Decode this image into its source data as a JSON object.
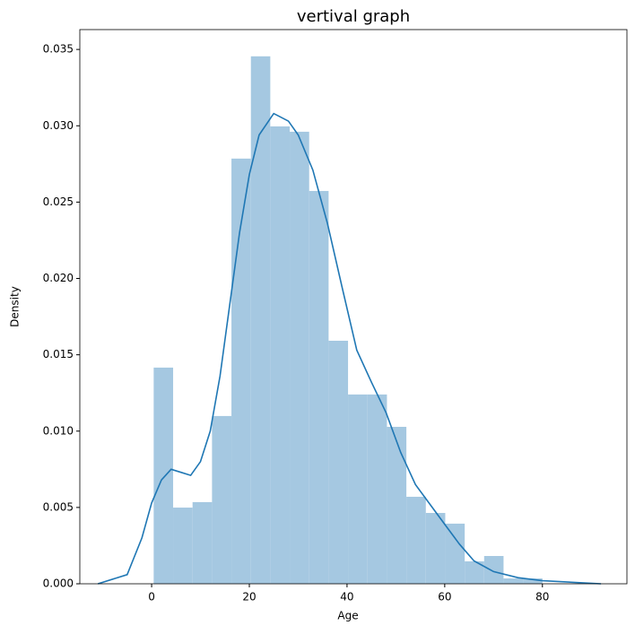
{
  "chart_data": {
    "type": "histogram",
    "title": "vertival graph",
    "x_label": "Age",
    "y_label": "Density",
    "bins": [
      0.42,
      4.4,
      8.38,
      12.36,
      16.34,
      20.32,
      24.29,
      28.27,
      32.25,
      36.23,
      40.21,
      44.19,
      48.17,
      52.15,
      56.13,
      60.11,
      64.09,
      68.07,
      72.04,
      76.02,
      80.0
    ],
    "values": [
      0.01416,
      0.00499,
      0.00535,
      0.01099,
      0.02785,
      0.03455,
      0.02996,
      0.02961,
      0.02573,
      0.01592,
      0.0124,
      0.0124,
      0.01028,
      0.0057,
      0.00464,
      0.00394,
      0.00147,
      0.00182,
      0.00035,
      0.00035
    ],
    "color": "#a5c8e1",
    "kde": {
      "color": "#1f77b4",
      "x": [
        -11,
        -5,
        -2,
        0,
        2,
        4,
        6,
        8,
        10,
        12,
        14,
        16,
        18,
        20,
        22,
        25,
        28,
        30,
        33,
        36,
        39,
        42,
        45,
        48,
        51,
        54,
        57,
        60,
        63,
        66,
        70,
        75,
        80,
        86,
        92
      ],
      "values": [
        0.0,
        0.0006,
        0.003,
        0.0053,
        0.0068,
        0.0075,
        0.0073,
        0.0071,
        0.008,
        0.01,
        0.0136,
        0.0183,
        0.023,
        0.0268,
        0.0294,
        0.0308,
        0.0303,
        0.0294,
        0.0271,
        0.0236,
        0.0194,
        0.0153,
        0.0132,
        0.0112,
        0.0086,
        0.0065,
        0.0052,
        0.0039,
        0.0026,
        0.0015,
        0.0008,
        0.0004,
        0.0002,
        0.0001,
        0.0
      ]
    },
    "xlim": [
      -14.7,
      97.3
    ],
    "ylim": [
      0,
      0.0363
    ],
    "xticks": [
      0,
      20,
      40,
      60,
      80
    ],
    "yticks": [
      {
        "value": 0,
        "label": "0.000"
      },
      {
        "value": 0.005,
        "label": "0.005"
      },
      {
        "value": 0.01,
        "label": "0.010"
      },
      {
        "value": 0.015,
        "label": "0.015"
      },
      {
        "value": 0.02,
        "label": "0.020"
      },
      {
        "value": 0.025,
        "label": "0.025"
      },
      {
        "value": 0.03,
        "label": "0.030"
      },
      {
        "value": 0.035,
        "label": "0.035"
      }
    ]
  }
}
